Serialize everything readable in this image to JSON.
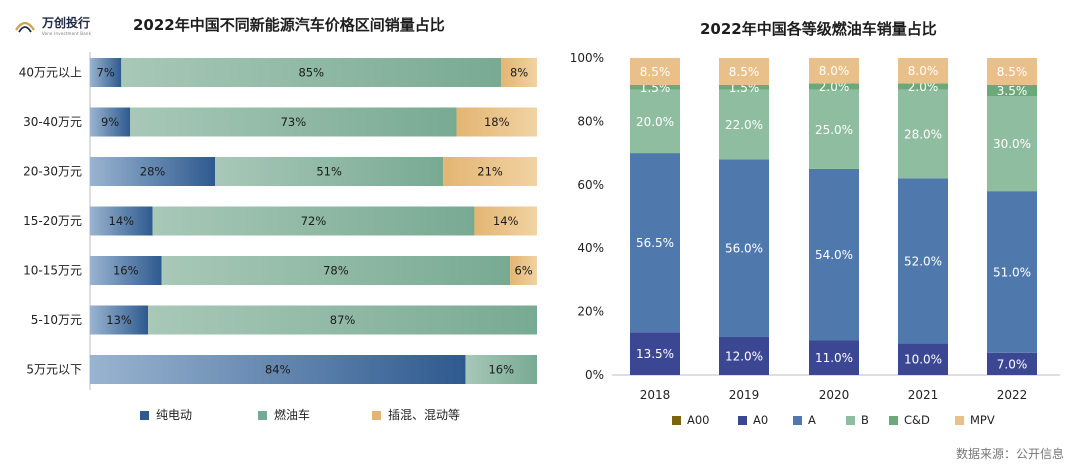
{
  "logo": {
    "name": "万创投行",
    "subtitle": "Vone Investment Bank"
  },
  "source_note": "数据来源：公开信息",
  "colors": {
    "ev_dark": "#2e5a8f",
    "ev_light": "#9ab4d0",
    "fuel": "#78aa93",
    "fuel_light": "#a8c8b8",
    "phev": "#e3b572",
    "phev_light": "#f1d3a3",
    "A00": "#7a6410",
    "A0": "#3b4793",
    "A": "#4f79ad",
    "B": "#8fbd9f",
    "CD": "#6ca978",
    "MPV": "#e9c089"
  },
  "chart_data": [
    {
      "type": "bar",
      "orientation": "horizontal",
      "stacked": true,
      "title": "2022年中国不同新能源汽车价格区间销量占比",
      "categories": [
        "40万元以上",
        "30-40万元",
        "20-30万元",
        "15-20万元",
        "10-15万元",
        "5-10万元",
        "5万元以下"
      ],
      "series": [
        {
          "name": "纯电动",
          "values": [
            7,
            9,
            28,
            14,
            16,
            13,
            84
          ]
        },
        {
          "name": "燃油车",
          "values": [
            85,
            73,
            51,
            72,
            78,
            87,
            16
          ]
        },
        {
          "name": "插混、混动等",
          "values": [
            8,
            18,
            21,
            14,
            6,
            0,
            0
          ]
        }
      ],
      "xlim": [
        0,
        100
      ],
      "legend": "bottom"
    },
    {
      "type": "bar",
      "stacked": true,
      "title": "2022年中国各等级燃油车销量占比",
      "categories": [
        "2018",
        "2019",
        "2020",
        "2021",
        "2022"
      ],
      "series": [
        {
          "name": "A00",
          "values": [
            0,
            0,
            0,
            0,
            0
          ]
        },
        {
          "name": "A0",
          "values": [
            13.5,
            12.0,
            11.0,
            10.0,
            7.0
          ]
        },
        {
          "name": "A",
          "values": [
            56.5,
            56.0,
            54.0,
            52.0,
            51.0
          ]
        },
        {
          "name": "B",
          "values": [
            20.0,
            22.0,
            25.0,
            28.0,
            30.0
          ]
        },
        {
          "name": "C&D",
          "values": [
            1.5,
            1.5,
            2.0,
            2.0,
            3.5
          ]
        },
        {
          "name": "MPV",
          "values": [
            8.5,
            8.5,
            8.0,
            8.0,
            8.5
          ]
        }
      ],
      "yticks": [
        "0%",
        "20%",
        "40%",
        "60%",
        "80%",
        "100%"
      ],
      "ylim": [
        0,
        100
      ],
      "legend": "bottom",
      "grid": false
    }
  ]
}
